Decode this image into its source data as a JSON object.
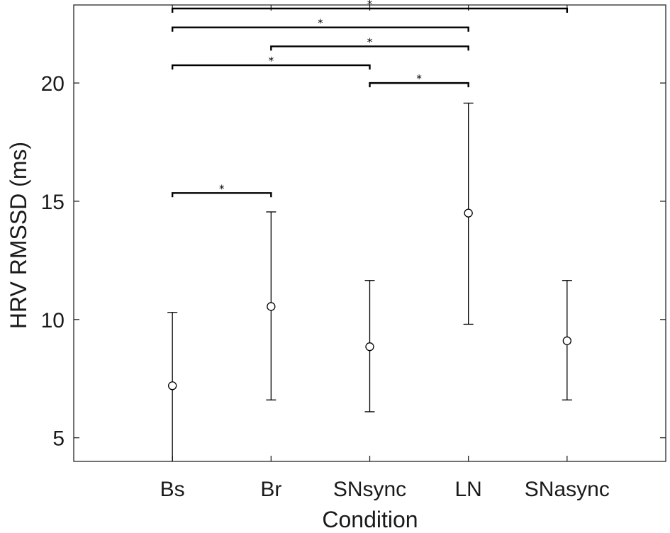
{
  "chart_data": {
    "type": "errorbar",
    "xlabel": "Condition",
    "ylabel": "HRV RMSSD (ms)",
    "categories": [
      "Bs",
      "Br",
      "SNsync",
      "LN",
      "SNasync"
    ],
    "series": [
      {
        "means": [
          7.2,
          10.55,
          8.85,
          14.5,
          9.1
        ],
        "lower": [
          4.0,
          6.6,
          6.1,
          9.8,
          6.6
        ],
        "upper": [
          10.3,
          14.55,
          11.65,
          19.15,
          11.65
        ]
      }
    ],
    "yticks": [
      5,
      10,
      15,
      20
    ],
    "ylim": [
      4.0,
      23.3
    ],
    "xlim": [
      0,
      6
    ],
    "grid": false,
    "significance": [
      {
        "from": "Bs",
        "to": "Br",
        "y": 15.35,
        "label": "*"
      },
      {
        "from": "Bs",
        "to": "SNsync",
        "y": 20.75,
        "label": "*"
      },
      {
        "from": "SNsync",
        "to": "LN",
        "y": 20.0,
        "label": "*"
      },
      {
        "from": "Br",
        "to": "LN",
        "y": 21.55,
        "label": "*"
      },
      {
        "from": "Bs",
        "to": "LN",
        "y": 22.35,
        "label": "*"
      },
      {
        "from": "Bs",
        "to": "SNasync",
        "y": 23.15,
        "label": "*"
      }
    ]
  }
}
